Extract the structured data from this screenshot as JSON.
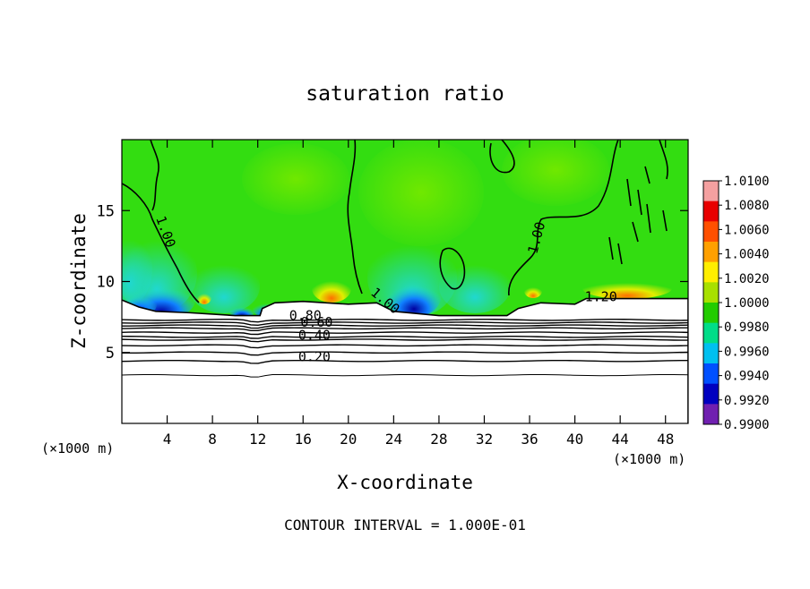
{
  "chart_data": {
    "type": "heatmap",
    "title": "saturation ratio",
    "xlabel": "X-coordinate",
    "ylabel": "Z-coordinate",
    "x_unit": "(×1000 m)",
    "xlim": [
      0,
      50
    ],
    "ylim": [
      0,
      20
    ],
    "x_ticks": [
      4,
      8,
      12,
      16,
      20,
      24,
      28,
      32,
      36,
      40,
      44,
      48
    ],
    "y_ticks": [
      5,
      10,
      15
    ],
    "footer": "CONTOUR INTERVAL = 1.000E-01",
    "colorbar": {
      "labels": [
        "1.0100",
        "1.0080",
        "1.0060",
        "1.0040",
        "1.0020",
        "1.0000",
        "0.9980",
        "0.9960",
        "0.9940",
        "0.9920",
        "0.9900"
      ],
      "colors": [
        "#f4a0a0",
        "#e80000",
        "#ff5000",
        "#ffa000",
        "#ffee00",
        "#a8e000",
        "#22cc00",
        "#00dd88",
        "#00c0f0",
        "#0050ff",
        "#0000c0",
        "#7020b0"
      ]
    },
    "field_colors": {
      "background": "#33dd11",
      "light": "#70e800",
      "cyan": "#20d8d0",
      "blue": "#1080ff",
      "deep": "#0000a0",
      "yellow": "#e0ee00",
      "orange": "#ff7000",
      "dry_layer": "#ffffff"
    },
    "contour_levels_horizontal": [
      0.2,
      0.4,
      0.6,
      0.8
    ],
    "contour_labels": [
      {
        "text": "1.00",
        "x": 3.5,
        "z": 13.4,
        "angle": 70
      },
      {
        "text": "1.00",
        "x": 37.0,
        "z": 13.0,
        "angle": -75
      },
      {
        "text": "1.00",
        "x": 23.0,
        "z": 8.4,
        "angle": 40
      },
      {
        "text": "1.20",
        "x": 42.3,
        "z": 8.6,
        "angle": 0
      },
      {
        "text": "0.80",
        "x": 16.2,
        "z": 7.3,
        "angle": 0
      },
      {
        "text": "0.60",
        "x": 17.2,
        "z": 6.8,
        "angle": 0
      },
      {
        "text": "0.40",
        "x": 17.0,
        "z": 5.9,
        "angle": 0
      },
      {
        "text": "0.20",
        "x": 17.0,
        "z": 4.4,
        "angle": 0
      }
    ],
    "layer_boundary_z": [
      [
        0,
        8.7
      ],
      [
        1.5,
        8.2
      ],
      [
        3,
        7.9
      ],
      [
        6,
        7.8
      ],
      [
        10,
        7.6
      ],
      [
        12.2,
        7.6
      ],
      [
        12.4,
        8.1
      ],
      [
        13.5,
        8.5
      ],
      [
        16,
        8.6
      ],
      [
        20,
        8.4
      ],
      [
        22.5,
        8.5
      ],
      [
        24,
        7.9
      ],
      [
        28,
        7.6
      ],
      [
        34,
        7.6
      ],
      [
        35,
        8.1
      ],
      [
        37,
        8.5
      ],
      [
        40,
        8.4
      ],
      [
        41,
        8.8
      ],
      [
        46,
        8.8
      ],
      [
        50,
        8.8
      ]
    ],
    "horizontal_contours_z": [
      7.3,
      7.1,
      6.9,
      6.7,
      6.4,
      6.1,
      5.9,
      5.5,
      5.0,
      4.4,
      3.4
    ]
  }
}
